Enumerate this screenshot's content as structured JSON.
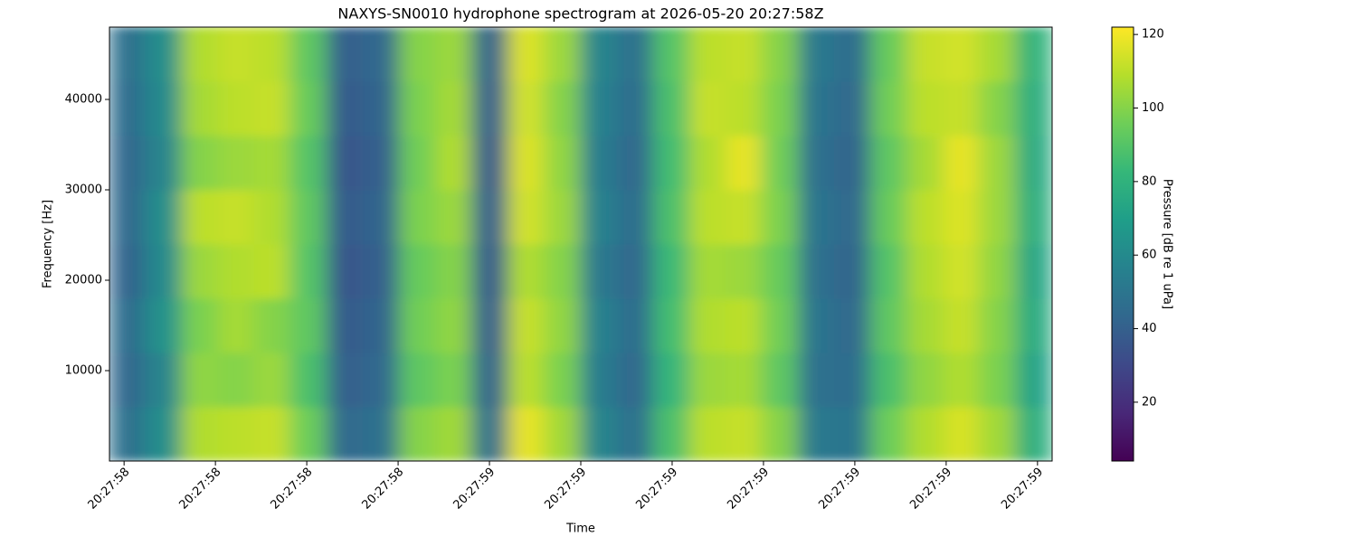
{
  "chart_data": {
    "type": "heatmap",
    "title": "NAXYS-SN0010 hydrophone spectrogram at 2026-05-20 20:27:58Z",
    "x_label": "Time",
    "y_label": "Frequency [Hz]",
    "colorbar_label": "Pressure [dB re 1 uPa]",
    "colormap": "viridis",
    "xlim": [
      58.584,
      59.616
    ],
    "xticks": [
      {
        "value": 58.6,
        "label": "20:27:58"
      },
      {
        "value": 58.7,
        "label": "20:27:58"
      },
      {
        "value": 58.8,
        "label": "20:27:58"
      },
      {
        "value": 58.9,
        "label": "20:27:58"
      },
      {
        "value": 59.0,
        "label": "20:27:59"
      },
      {
        "value": 59.1,
        "label": "20:27:59"
      },
      {
        "value": 59.2,
        "label": "20:27:59"
      },
      {
        "value": 59.3,
        "label": "20:27:59"
      },
      {
        "value": 59.4,
        "label": "20:27:59"
      },
      {
        "value": 59.5,
        "label": "20:27:59"
      },
      {
        "value": 59.6,
        "label": "20:27:59"
      }
    ],
    "ylim": [
      0,
      48000
    ],
    "yticks": [
      10000,
      20000,
      30000,
      40000
    ],
    "clim": [
      4,
      122
    ],
    "cticks": [
      20,
      40,
      60,
      80,
      100,
      120
    ],
    "values": [
      [
        48,
        62,
        108,
        110,
        112,
        95,
        45,
        48,
        100,
        105,
        48,
        118,
        105,
        58,
        48,
        88,
        110,
        112,
        100,
        52,
        50,
        95,
        108,
        115,
        105,
        78
      ],
      [
        44,
        58,
        102,
        100,
        104,
        88,
        40,
        44,
        92,
        98,
        42,
        110,
        98,
        54,
        44,
        82,
        104,
        106,
        92,
        48,
        46,
        88,
        102,
        108,
        98,
        72
      ],
      [
        46,
        64,
        98,
        106,
        100,
        92,
        38,
        42,
        96,
        102,
        40,
        112,
        102,
        56,
        46,
        86,
        108,
        110,
        96,
        50,
        44,
        92,
        106,
        112,
        100,
        76
      ],
      [
        42,
        60,
        104,
        108,
        110,
        90,
        36,
        40,
        94,
        100,
        38,
        108,
        100,
        52,
        44,
        84,
        106,
        104,
        94,
        48,
        42,
        90,
        108,
        114,
        102,
        74
      ],
      [
        45,
        62,
        110,
        112,
        108,
        92,
        38,
        42,
        98,
        104,
        40,
        114,
        104,
        56,
        46,
        88,
        110,
        112,
        98,
        50,
        44,
        94,
        110,
        116,
        104,
        78
      ],
      [
        44,
        58,
        100,
        104,
        106,
        90,
        36,
        40,
        96,
        108,
        38,
        116,
        102,
        54,
        44,
        86,
        108,
        118,
        96,
        48,
        42,
        92,
        106,
        118,
        104,
        76
      ],
      [
        46,
        60,
        106,
        110,
        112,
        94,
        38,
        42,
        98,
        106,
        40,
        114,
        100,
        56,
        46,
        88,
        112,
        110,
        98,
        50,
        44,
        96,
        110,
        112,
        100,
        78
      ],
      [
        48,
        62,
        108,
        112,
        110,
        92,
        40,
        44,
        100,
        104,
        42,
        116,
        104,
        58,
        48,
        90,
        110,
        112,
        100,
        52,
        46,
        94,
        112,
        114,
        106,
        80
      ]
    ]
  }
}
